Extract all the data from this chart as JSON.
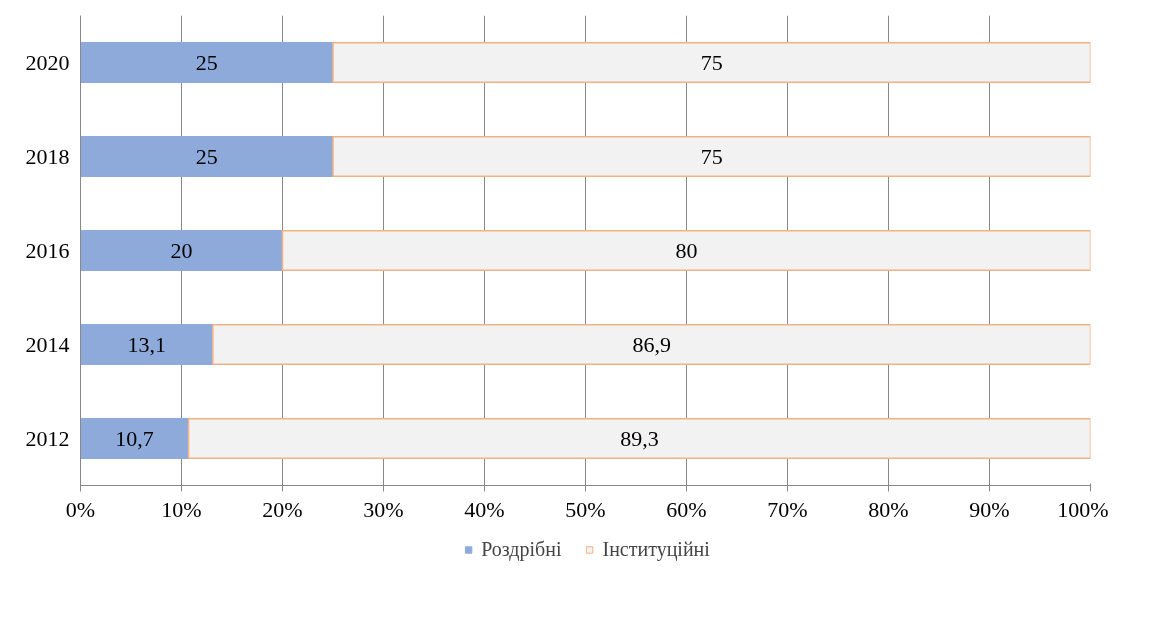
{
  "chart_data": {
    "type": "bar",
    "orientation": "horizontal",
    "stacked": true,
    "categories": [
      "2020",
      "2018",
      "2016",
      "2014",
      "2012"
    ],
    "series": [
      {
        "name": "Роздрібні",
        "color": "#8eaadb",
        "values": [
          25,
          25,
          20,
          13.1,
          10.7
        ],
        "value_labels": [
          "25",
          "25",
          "20",
          "13,1",
          "10,7"
        ]
      },
      {
        "name": "Інституційні",
        "color": "#f2f2f2",
        "values": [
          75,
          75,
          80,
          86.9,
          89.3
        ],
        "value_labels": [
          "75",
          "75",
          "80",
          "86,9",
          "89,3"
        ]
      }
    ],
    "xlim": [
      0,
      100
    ],
    "xticks": [
      {
        "value": 0,
        "label": "0%"
      },
      {
        "value": 10,
        "label": "10%"
      },
      {
        "value": 20,
        "label": "20%"
      },
      {
        "value": 30,
        "label": "30%"
      },
      {
        "value": 40,
        "label": "40%"
      },
      {
        "value": 50,
        "label": "50%"
      },
      {
        "value": 60,
        "label": "60%"
      },
      {
        "value": 70,
        "label": "70%"
      },
      {
        "value": 80,
        "label": "80%"
      },
      {
        "value": 90,
        "label": "90%"
      },
      {
        "value": 100,
        "label": "100%"
      }
    ],
    "grid": "x",
    "legend": "bottom"
  }
}
